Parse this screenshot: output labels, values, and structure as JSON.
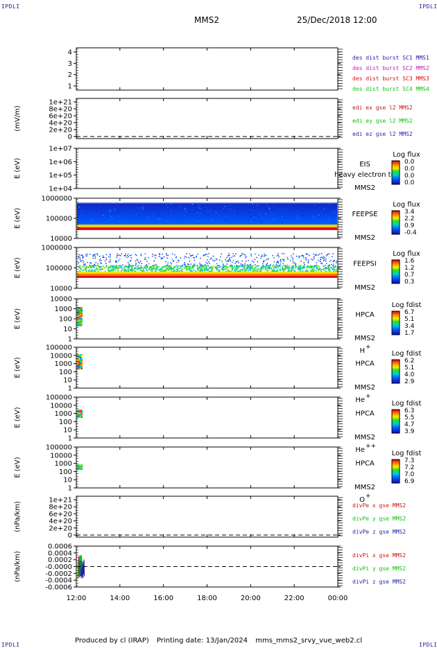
{
  "header": {
    "corner_label": "IPDLI",
    "spacecraft": "MMS2",
    "date": "25/Dec/2018 12:00"
  },
  "footer": {
    "produced_by": "Produced by cl (IRAP)",
    "printing_date": "Printing date: 13/Jan/2024",
    "filename": "mms_mms2_srvy_vue_web2.cl"
  },
  "colors": {
    "blue": "#1f1fb0",
    "magenta": "#c020c0",
    "red": "#d01010",
    "green": "#10c010"
  },
  "chart_data": {
    "type": "multi-panel time series / spectrogram",
    "x_axis": {
      "ticks": [
        "12:00",
        "14:00",
        "16:00",
        "18:00",
        "20:00",
        "22:00",
        "00:00"
      ],
      "range": [
        "12:00",
        "00:00"
      ]
    },
    "panels": [
      {
        "id": "p1",
        "ylabel": "",
        "yticks": [
          "1",
          "2",
          "3",
          "4"
        ],
        "legend": [
          {
            "text": "des dist burst SC1 MMS1",
            "color": "#1f1fb0"
          },
          {
            "text": "des dist burst SC2 MMS2",
            "color": "#c020c0"
          },
          {
            "text": "des dist burst SC3 MMS3",
            "color": "#d01010"
          },
          {
            "text": "des dist burst SC4 MMS4",
            "color": "#10c010"
          }
        ]
      },
      {
        "id": "p2",
        "ylabel": "(mV/m)",
        "yticks": [
          "0",
          "2e+20",
          "4e+20",
          "6e+20",
          "8e+20",
          "1e+21"
        ],
        "legend": [
          {
            "text": "edi ex gse l2 MMS2",
            "color": "#d01010"
          },
          {
            "text": "edi ey gse l2 MMS2",
            "color": "#10c010"
          },
          {
            "text": "edi ez gse l2 MMS2",
            "color": "#1f1fb0"
          }
        ]
      },
      {
        "id": "p3",
        "ylabel": "E (eV)",
        "yticks": [
          "1e+04",
          "1e+05",
          "1e+06",
          "1e+07"
        ],
        "instrument": [
          "EIS",
          "MMS2"
        ],
        "overlay": "heavy electron to",
        "colorbar": {
          "title": "Log flux",
          "values": [
            "0.0",
            "0.0",
            "0.0",
            "0.0"
          ]
        }
      },
      {
        "id": "p4",
        "ylabel": "E (eV)",
        "yticks": [
          "10000",
          "100000",
          "1000000"
        ],
        "instrument": [
          "FEEPSE",
          "MMS2"
        ],
        "colorbar": {
          "title": "Log flux",
          "values": [
            "3.4",
            "2.2",
            "0.9",
            "-0.4"
          ]
        }
      },
      {
        "id": "p5",
        "ylabel": "E (eV)",
        "yticks": [
          "10000",
          "100000",
          "1000000"
        ],
        "instrument": [
          "FEEPSI",
          "MMS2"
        ],
        "colorbar": {
          "title": "Log flux",
          "values": [
            "1.6",
            "1.2",
            "0.7",
            "0.3"
          ]
        }
      },
      {
        "id": "p6",
        "ylabel": "E (eV)",
        "yticks": [
          "1",
          "10",
          "100",
          "1000",
          "10000"
        ],
        "instrument": [
          "HPCA",
          "MMS2"
        ],
        "species": "H",
        "species_sup": "+",
        "colorbar": {
          "title": "Log fdist",
          "values": [
            "6.7",
            "5.1",
            "3.4",
            "1.7"
          ]
        }
      },
      {
        "id": "p7",
        "ylabel": "E (eV)",
        "yticks": [
          "1",
          "10",
          "100",
          "1000",
          "10000",
          "100000"
        ],
        "instrument": [
          "HPCA",
          "MMS2"
        ],
        "species": "He",
        "species_sup": "+",
        "colorbar": {
          "title": "Log fdist",
          "values": [
            "6.2",
            "5.1",
            "4.0",
            "2.9"
          ]
        }
      },
      {
        "id": "p8",
        "ylabel": "E (eV)",
        "yticks": [
          "1",
          "10",
          "100",
          "1000",
          "10000",
          "100000"
        ],
        "instrument": [
          "HPCA",
          "MMS2"
        ],
        "species": "He",
        "species_sup": "++",
        "colorbar": {
          "title": "Log fdist",
          "values": [
            "6.3",
            "5.5",
            "4.7",
            "3.9"
          ]
        }
      },
      {
        "id": "p9",
        "ylabel": "E (eV)",
        "yticks": [
          "1",
          "10",
          "100",
          "1000",
          "10000",
          "100000"
        ],
        "instrument": [
          "HPCA",
          "MMS2"
        ],
        "species": "O",
        "species_sup": "+",
        "colorbar": {
          "title": "Log fdist",
          "values": [
            "7.3",
            "7.2",
            "7.0",
            "6.9"
          ]
        }
      },
      {
        "id": "p10",
        "ylabel": "(nPa/km)",
        "yticks": [
          "0",
          "2e+20",
          "4e+20",
          "6e+20",
          "8e+20",
          "1e+21"
        ],
        "legend": [
          {
            "text": "divPe x gse MMS2",
            "color": "#d01010"
          },
          {
            "text": "divPe y gse MMS2",
            "color": "#10c010"
          },
          {
            "text": "divPe z gse MMS2",
            "color": "#1f1fb0"
          }
        ]
      },
      {
        "id": "p11",
        "ylabel": "(nPa/km)",
        "yticks": [
          "-0.0006",
          "-0.0004",
          "-0.0002",
          "-0.0000",
          "0.0002",
          "0.0004",
          "0.0006"
        ],
        "legend": [
          {
            "text": "divPi x gse MMS2",
            "color": "#d01010"
          },
          {
            "text": "divPi y gse MMS2",
            "color": "#10c010"
          },
          {
            "text": "divPi z gse MMS2",
            "color": "#1f1fb0"
          }
        ]
      }
    ]
  }
}
